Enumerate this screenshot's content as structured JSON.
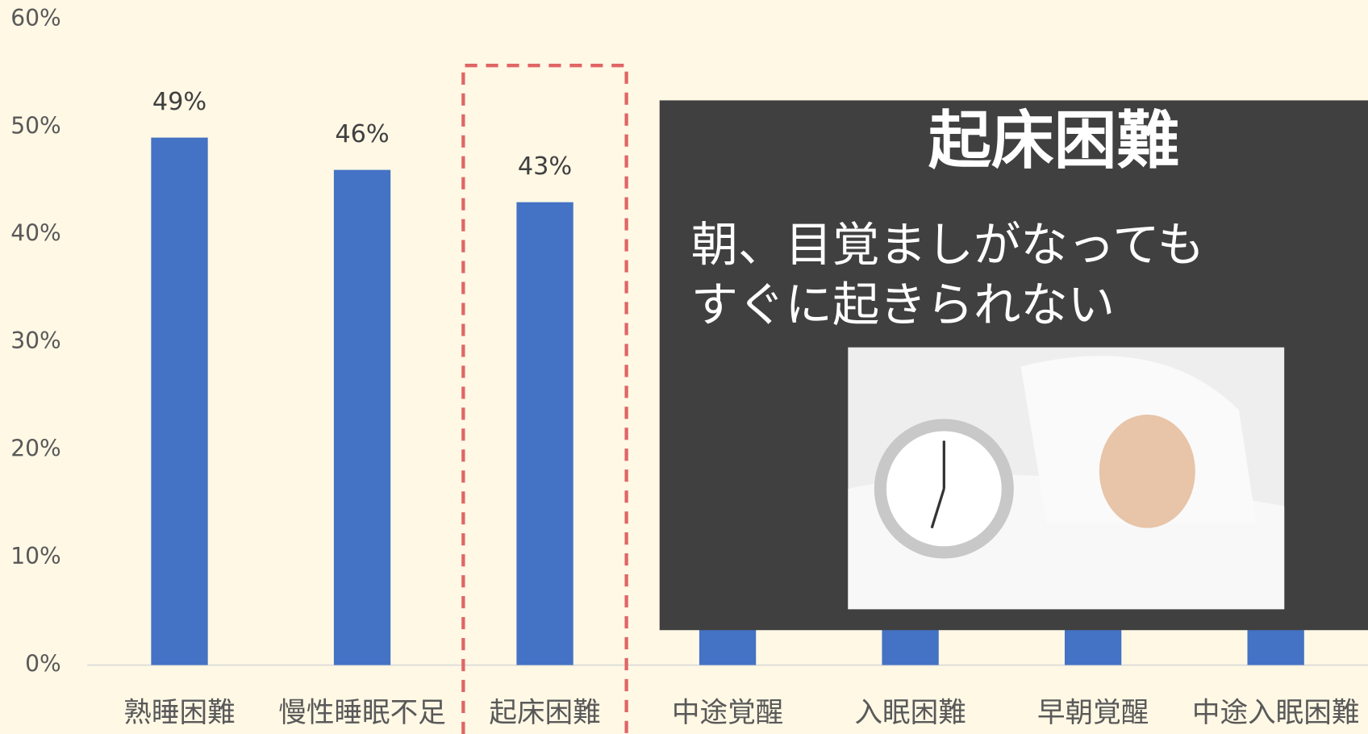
{
  "chart_data": {
    "type": "bar",
    "categories": [
      "熟睡困難",
      "慢性睡眠不足",
      "起床困難",
      "中途覚醒",
      "入眠困難",
      "早朝覚醒",
      "中途入眠困難"
    ],
    "values": [
      49,
      46,
      43,
      41,
      39,
      36,
      33
    ],
    "value_labels": [
      "49%",
      "46%",
      "43%",
      null,
      null,
      null,
      null
    ],
    "color": "#4472c4",
    "ylim": [
      0,
      60
    ],
    "yticks": [
      {
        "value": 0,
        "label": "0%"
      },
      {
        "value": 10,
        "label": "10%"
      },
      {
        "value": 20,
        "label": "20%"
      },
      {
        "value": 30,
        "label": "30%"
      },
      {
        "value": 40,
        "label": "40%"
      },
      {
        "value": 50,
        "label": "50%"
      },
      {
        "value": 60,
        "label": "60%"
      }
    ],
    "highlight_color": "#e06666"
  },
  "overlay": {
    "title": "起床困難",
    "lines": [
      "朝、目覚ましがなっても",
      "すぐに起きられない"
    ]
  }
}
